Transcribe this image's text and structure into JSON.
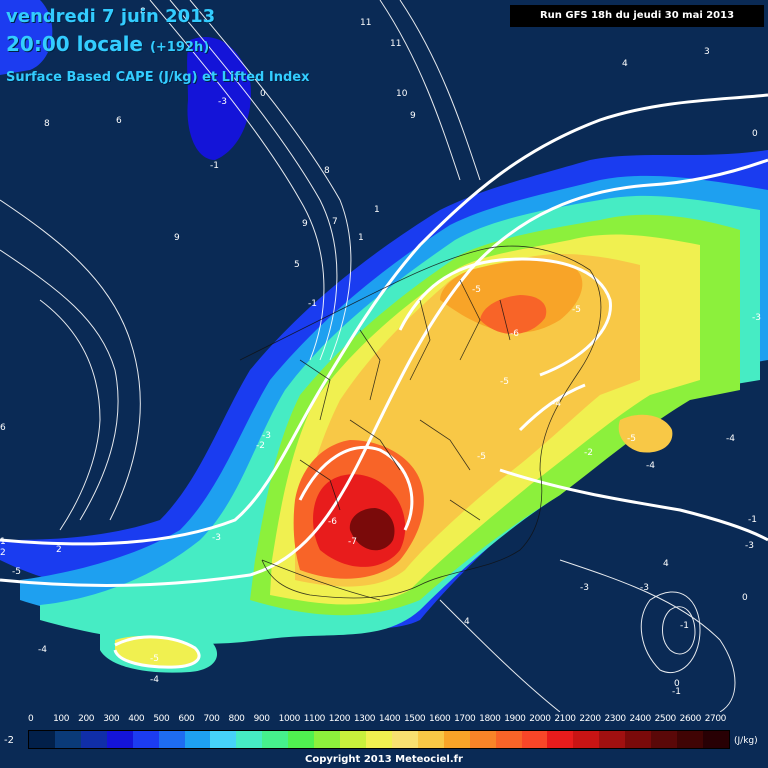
{
  "header": {
    "day": "vendredi 7 juin 2013",
    "time": "20:00 locale",
    "lead": "(+192h)",
    "parameter": "Surface Based CAPE (J/kg) et Lifted Index",
    "run": "Run GFS 18h du jeudi 30 mai 2013"
  },
  "legend": {
    "labels": [
      "0",
      "100",
      "200",
      "300",
      "400",
      "500",
      "600",
      "700",
      "800",
      "900",
      "1000",
      "1100",
      "1200",
      "1300",
      "1400",
      "1500",
      "1600",
      "1700",
      "1800",
      "1900",
      "2000",
      "2100",
      "2200",
      "2300",
      "2400",
      "2500",
      "2600",
      "2700"
    ],
    "colors": [
      "#02204a",
      "#0a3a78",
      "#102ea8",
      "#1414d8",
      "#1c3cf0",
      "#1e6cf0",
      "#1ea0f0",
      "#46d2f8",
      "#46ecc4",
      "#46f08c",
      "#50f050",
      "#8cf03c",
      "#c8f03c",
      "#f0f050",
      "#f8e070",
      "#f8c846",
      "#f8a428",
      "#f88428",
      "#f86428",
      "#f84628",
      "#e81c1c",
      "#c81414",
      "#a01010",
      "#7a0a0a",
      "#5a0808",
      "#400404",
      "#280004"
    ],
    "unit": "(J/kg)",
    "minus_label": "-2"
  },
  "copyright": "Copyright 2013 Meteociel.fr",
  "lifted_index_labels": [
    "-5",
    "-6",
    "-5",
    "-5",
    "-6",
    "-7",
    "-5",
    "-4",
    "-4",
    "-5",
    "-5",
    "-3",
    "-3",
    "-2",
    "-1",
    "-1",
    "-2",
    "-3",
    "-3",
    "-3",
    "-4",
    "-5",
    "-4",
    "-3",
    "-3",
    "-1",
    "-1",
    "-1",
    "-2",
    "-3",
    "-4",
    "5",
    "6",
    "7",
    "8",
    "9",
    "9",
    "9",
    "10",
    "11",
    "11",
    "3",
    "4",
    "4",
    "4",
    "2",
    "1",
    "1",
    "0",
    "0",
    "0",
    "0",
    "1",
    "2",
    "6",
    "8",
    "8"
  ]
}
